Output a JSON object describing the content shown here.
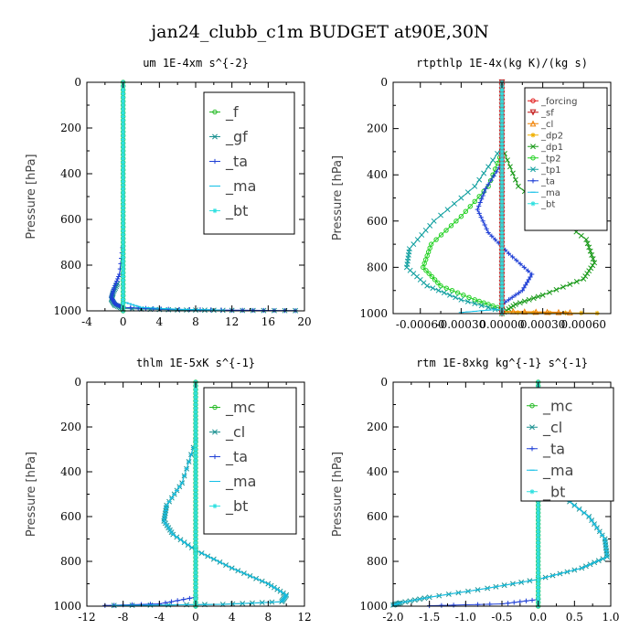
{
  "title": "jan24_clubb_c1m  BUDGET at90E,30N",
  "colors": {
    "green": "#1fb81f",
    "blue": "#1f3fd6",
    "cyan": "#12bfe6",
    "aqua": "#2fe0e0",
    "red": "#e01414",
    "orange": "#f0a000",
    "teal": "#1a9090"
  },
  "chart_data": [
    {
      "type": "line",
      "title": "um  1E-4xm s^{-2}",
      "ylabel": "Pressure [hPa]",
      "xlim": [
        -4,
        20
      ],
      "ylim": [
        1000,
        0
      ],
      "x_ticks": [
        "-4",
        "0",
        "4",
        "8",
        "12",
        "16",
        "20"
      ],
      "y_ticks": [
        "0",
        "200",
        "400",
        "600",
        "800",
        "1000"
      ],
      "legend": [
        "_f",
        "_gf",
        "_ta",
        "_ma",
        "_bt"
      ],
      "series": [
        {
          "name": "_gf",
          "color": "#1a9090",
          "marker": "x",
          "points": [
            [
              -0.6,
              880
            ],
            [
              -1.1,
              920
            ],
            [
              -1.3,
              950
            ],
            [
              -0.9,
              975
            ],
            [
              0,
              990
            ],
            [
              6,
              996
            ],
            [
              12,
              998
            ],
            [
              19,
              999
            ]
          ]
        },
        {
          "name": "_ta",
          "color": "#1f3fd6",
          "marker": "+",
          "points": [
            [
              0,
              700
            ],
            [
              -0.4,
              840
            ],
            [
              -1.0,
              900
            ],
            [
              -1.3,
              940
            ],
            [
              -0.9,
              970
            ],
            [
              0,
              985
            ],
            [
              5,
              993
            ],
            [
              12,
              997
            ],
            [
              19,
              999
            ]
          ]
        },
        {
          "name": "_ma",
          "color": "#12bfe6",
          "marker": "-",
          "points": [
            [
              0,
              960
            ],
            [
              2,
              985
            ],
            [
              6,
              993
            ],
            [
              11,
              997
            ]
          ]
        },
        {
          "name": "_f",
          "color": "#1fb81f",
          "marker": "o",
          "points": [
            [
              0,
              0
            ],
            [
              0,
              1000
            ]
          ]
        },
        {
          "name": "_bt",
          "color": "#2fe0e0",
          "marker": "*",
          "points": [
            [
              0,
              0
            ],
            [
              0,
              1000
            ]
          ]
        }
      ]
    },
    {
      "type": "line",
      "title": "rtpthlp  1E-4x(kg K)/(kg s)",
      "ylabel": "Pressure [hPa]",
      "xlim": [
        -0.0008,
        0.0008
      ],
      "ylim": [
        1000,
        0
      ],
      "x_ticks": [
        "-0.00060",
        "-0.00030",
        "0.00000",
        "0.00030",
        "0.00060"
      ],
      "y_ticks": [
        "0",
        "200",
        "400",
        "600",
        "800",
        "1000"
      ],
      "legend": [
        "_forcing",
        "_sf",
        "_cl",
        "_dp2",
        "_dp1",
        "_tp2",
        "_tp1",
        "_ta",
        "_ma",
        "_bt"
      ],
      "series": [
        {
          "name": "_dp1",
          "color": "#1a9a1a",
          "marker": "x",
          "points": [
            [
              0,
              280
            ],
            [
              0.00012,
              450
            ],
            [
              0.0004,
              580
            ],
            [
              0.00062,
              680
            ],
            [
              0.00068,
              780
            ],
            [
              0.0006,
              850
            ],
            [
              0.0003,
              920
            ],
            [
              0.0001,
              960
            ],
            [
              0,
              1000
            ]
          ]
        },
        {
          "name": "_tp2",
          "color": "#1fd01f",
          "marker": "o",
          "points": [
            [
              0,
              300
            ],
            [
              -0.0001,
              450
            ],
            [
              -0.0003,
              580
            ],
            [
              -0.00052,
              700
            ],
            [
              -0.00058,
              800
            ],
            [
              -0.00045,
              880
            ],
            [
              -0.0002,
              940
            ],
            [
              0,
              980
            ]
          ]
        },
        {
          "name": "_tp1",
          "color": "#12a0a0",
          "marker": "x",
          "points": [
            [
              0,
              280
            ],
            [
              -0.0002,
              450
            ],
            [
              -0.0005,
              600
            ],
            [
              -0.00068,
              720
            ],
            [
              -0.0007,
              800
            ],
            [
              -0.00055,
              880
            ],
            [
              -0.0003,
              940
            ],
            [
              0,
              990
            ]
          ]
        },
        {
          "name": "_ta",
          "color": "#1f3fd6",
          "marker": "+",
          "points": [
            [
              0,
              350
            ],
            [
              -0.00012,
              460
            ],
            [
              -0.00018,
              550
            ],
            [
              -0.0001,
              650
            ],
            [
              5e-05,
              740
            ],
            [
              0.00022,
              830
            ],
            [
              0.00015,
              900
            ],
            [
              0,
              960
            ]
          ]
        },
        {
          "name": "_dp2",
          "color": "#f0b000",
          "marker": "*",
          "points": [
            [
              0,
              995
            ],
            [
              0.0007,
              998
            ]
          ]
        },
        {
          "name": "_cl",
          "color": "#f08000",
          "marker": "^",
          "points": [
            [
              0,
              990
            ],
            [
              0.0005,
              995
            ]
          ]
        },
        {
          "name": "_ma",
          "color": "#12bfe6",
          "marker": "-",
          "points": [
            [
              0,
              980
            ],
            [
              -0.0003,
              995
            ]
          ]
        },
        {
          "name": "_forcing",
          "color": "#e01414",
          "marker": "o",
          "points": [
            [
              0,
              0
            ],
            [
              0,
              1000
            ]
          ]
        },
        {
          "name": "_sf",
          "color": "#c01010",
          "marker": "v",
          "points": [
            [
              0,
              0
            ],
            [
              0,
              1000
            ]
          ]
        },
        {
          "name": "_bt",
          "color": "#2fe0e0",
          "marker": "*",
          "points": [
            [
              0,
              0
            ],
            [
              0,
              1000
            ]
          ]
        }
      ]
    },
    {
      "type": "line",
      "title": "thlm  1E-5xK s^{-1}",
      "ylabel": "Pressure [hPa]",
      "xlim": [
        -12,
        12
      ],
      "ylim": [
        1000,
        0
      ],
      "x_ticks": [
        "-12",
        "-8",
        "-4",
        "0",
        "4",
        "8",
        "12"
      ],
      "y_ticks": [
        "0",
        "200",
        "400",
        "600",
        "800",
        "1000"
      ],
      "legend": [
        "_mc",
        "_cl",
        "_ta",
        "_ma",
        "_bt"
      ],
      "series": [
        {
          "name": "_cl",
          "color": "#1a9090",
          "marker": "x",
          "points": [
            [
              0,
              260
            ],
            [
              -1.5,
              450
            ],
            [
              -3.2,
              550
            ],
            [
              -3.5,
              620
            ],
            [
              -2.5,
              680
            ],
            [
              0,
              750
            ],
            [
              4,
              830
            ],
            [
              8,
              900
            ],
            [
              10,
              950
            ],
            [
              9.5,
              980
            ],
            [
              3,
              992
            ],
            [
              -9,
              997
            ]
          ]
        },
        {
          "name": "_ta",
          "color": "#1f3fd6",
          "marker": "+",
          "points": [
            [
              0,
              960
            ],
            [
              -4,
              990
            ],
            [
              -10,
              997
            ]
          ]
        },
        {
          "name": "_ma",
          "color": "#12bfe6",
          "marker": "-",
          "points": [
            [
              0,
              260
            ],
            [
              -1.5,
              450
            ],
            [
              -3.2,
              550
            ],
            [
              -3.5,
              620
            ],
            [
              -2.5,
              680
            ],
            [
              0,
              750
            ],
            [
              4,
              830
            ],
            [
              8,
              900
            ],
            [
              10,
              950
            ],
            [
              9.5,
              980
            ],
            [
              3,
              992
            ],
            [
              -9,
              997
            ]
          ]
        },
        {
          "name": "_mc",
          "color": "#1fb81f",
          "marker": "o",
          "points": [
            [
              0,
              0
            ],
            [
              0,
              1000
            ]
          ]
        },
        {
          "name": "_bt",
          "color": "#2fe0e0",
          "marker": "*",
          "points": [
            [
              0,
              0
            ],
            [
              0,
              1000
            ]
          ]
        }
      ]
    },
    {
      "type": "line",
      "title": "rtm  1E-8xkg kg^{-1} s^{-1}",
      "ylabel": "Pressure [hPa]",
      "xlim": [
        -2.0,
        1.0
      ],
      "ylim": [
        1000,
        0
      ],
      "x_ticks": [
        "-2.0",
        "-1.5",
        "-1.0",
        "-0.5",
        "0.0",
        "0.5",
        "1.0"
      ],
      "y_ticks": [
        "0",
        "200",
        "400",
        "600",
        "800",
        "1000"
      ],
      "legend": [
        "_mc",
        "_cl",
        "_ta",
        "_ma",
        "_bt"
      ],
      "series": [
        {
          "name": "_cl",
          "color": "#1a9090",
          "marker": "x",
          "points": [
            [
              0,
              100
            ],
            [
              0.05,
              300
            ],
            [
              0.3,
              500
            ],
            [
              0.7,
              600
            ],
            [
              0.92,
              700
            ],
            [
              0.95,
              780
            ],
            [
              0.6,
              830
            ],
            [
              0,
              880
            ],
            [
              -0.7,
              920
            ],
            [
              -1.5,
              960
            ],
            [
              -1.9,
              985
            ],
            [
              -2.0,
              995
            ]
          ]
        },
        {
          "name": "_ta",
          "color": "#1f3fd6",
          "marker": "+",
          "points": [
            [
              0,
              970
            ],
            [
              -0.5,
              990
            ],
            [
              -1.5,
              998
            ]
          ]
        },
        {
          "name": "_ma",
          "color": "#12bfe6",
          "marker": "-",
          "points": [
            [
              0,
              100
            ],
            [
              0.05,
              300
            ],
            [
              0.3,
              500
            ],
            [
              0.7,
              600
            ],
            [
              0.92,
              700
            ],
            [
              0.95,
              780
            ],
            [
              0.6,
              830
            ],
            [
              0,
              880
            ],
            [
              -0.7,
              920
            ],
            [
              -1.5,
              960
            ],
            [
              -1.9,
              985
            ],
            [
              -2.0,
              995
            ]
          ]
        },
        {
          "name": "_mc",
          "color": "#1fb81f",
          "marker": "o",
          "points": [
            [
              0,
              0
            ],
            [
              0,
              1000
            ]
          ]
        },
        {
          "name": "_bt",
          "color": "#2fe0e0",
          "marker": "*",
          "points": [
            [
              0,
              0
            ],
            [
              0,
              1000
            ]
          ]
        }
      ]
    }
  ]
}
